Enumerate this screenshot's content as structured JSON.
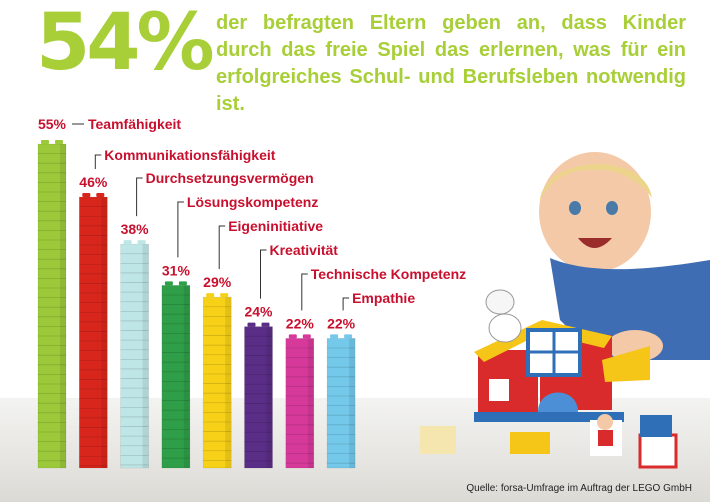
{
  "headline": {
    "percent": "54%",
    "text": "der befragten Eltern geben an, dass Kinder durch das freie Spiel das erlernen, was für ein erfolgreiches Schul- und Berufsleben notwendig ist."
  },
  "chart_data": {
    "type": "bar",
    "categories": [
      "Teamfähigkeit",
      "Kommunikationsfähigkeit",
      "Durchsetzungsvermögen",
      "Lösungskompetenz",
      "Eigeninitiative",
      "Kreativität",
      "Technische Kompetenz",
      "Empathie"
    ],
    "values": [
      55,
      46,
      38,
      31,
      29,
      24,
      22,
      22
    ],
    "value_labels": [
      "55%",
      "46%",
      "38%",
      "31%",
      "29%",
      "24%",
      "22%",
      "22%"
    ],
    "colors": [
      "#9cc93a",
      "#d9261c",
      "#bfe6e6",
      "#2e9e48",
      "#f7d118",
      "#5a2d86",
      "#d6399a",
      "#74c8ea"
    ],
    "ylim": [
      0,
      55
    ],
    "label_color": "#c8102e"
  },
  "source": "Quelle: forsa-Umfrage im Auftrag der LEGO GmbH"
}
